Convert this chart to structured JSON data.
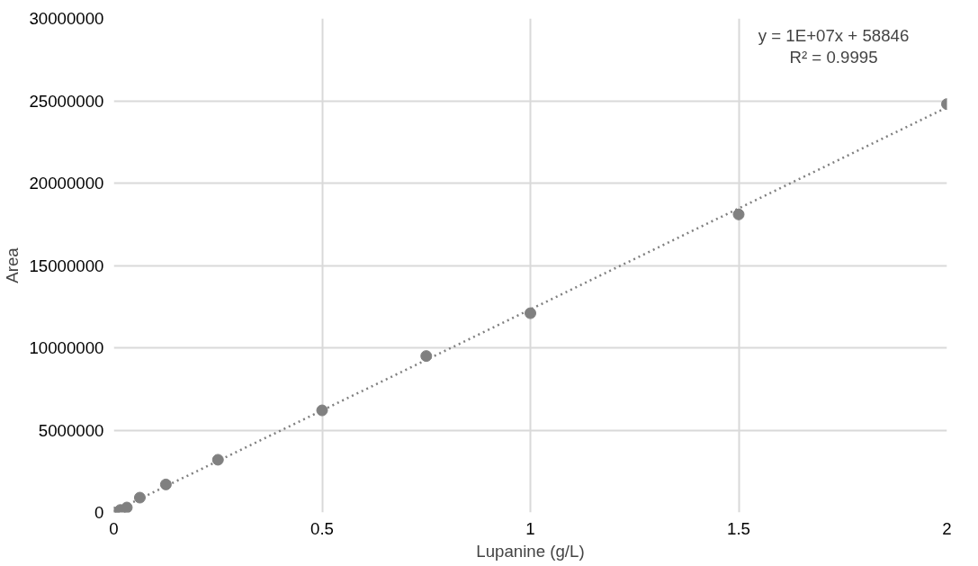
{
  "chart_data": {
    "type": "scatter",
    "xlabel": "Lupanine (g/L)",
    "ylabel": "Area",
    "xlim": [
      0,
      2
    ],
    "xticks": [
      0,
      0.5,
      1,
      1.5,
      2
    ],
    "ylim": [
      0,
      30000000
    ],
    "yticks": [
      0,
      5000000,
      10000000,
      15000000,
      20000000,
      25000000,
      30000000
    ],
    "grid": true,
    "series": [
      {
        "color": "#808080",
        "marker": "circle",
        "x": [
          0,
          0.0156,
          0.03125,
          0.0625,
          0.125,
          0.25,
          0.5,
          0.75,
          1,
          1.5,
          2
        ],
        "values": [
          0,
          150000,
          300000,
          900000,
          1700000,
          3200000,
          6200000,
          9500000,
          12100000,
          18100000,
          24800000
        ]
      },
      {
        "type": "line",
        "color": "#808080",
        "marker": "none",
        "line_style": "dotted",
        "x": [
          0,
          2
        ],
        "values": [
          60000,
          24600000
        ]
      }
    ],
    "annotations": [
      "y = 1E+07x + 58846\nR² = 0.9995"
    ]
  }
}
